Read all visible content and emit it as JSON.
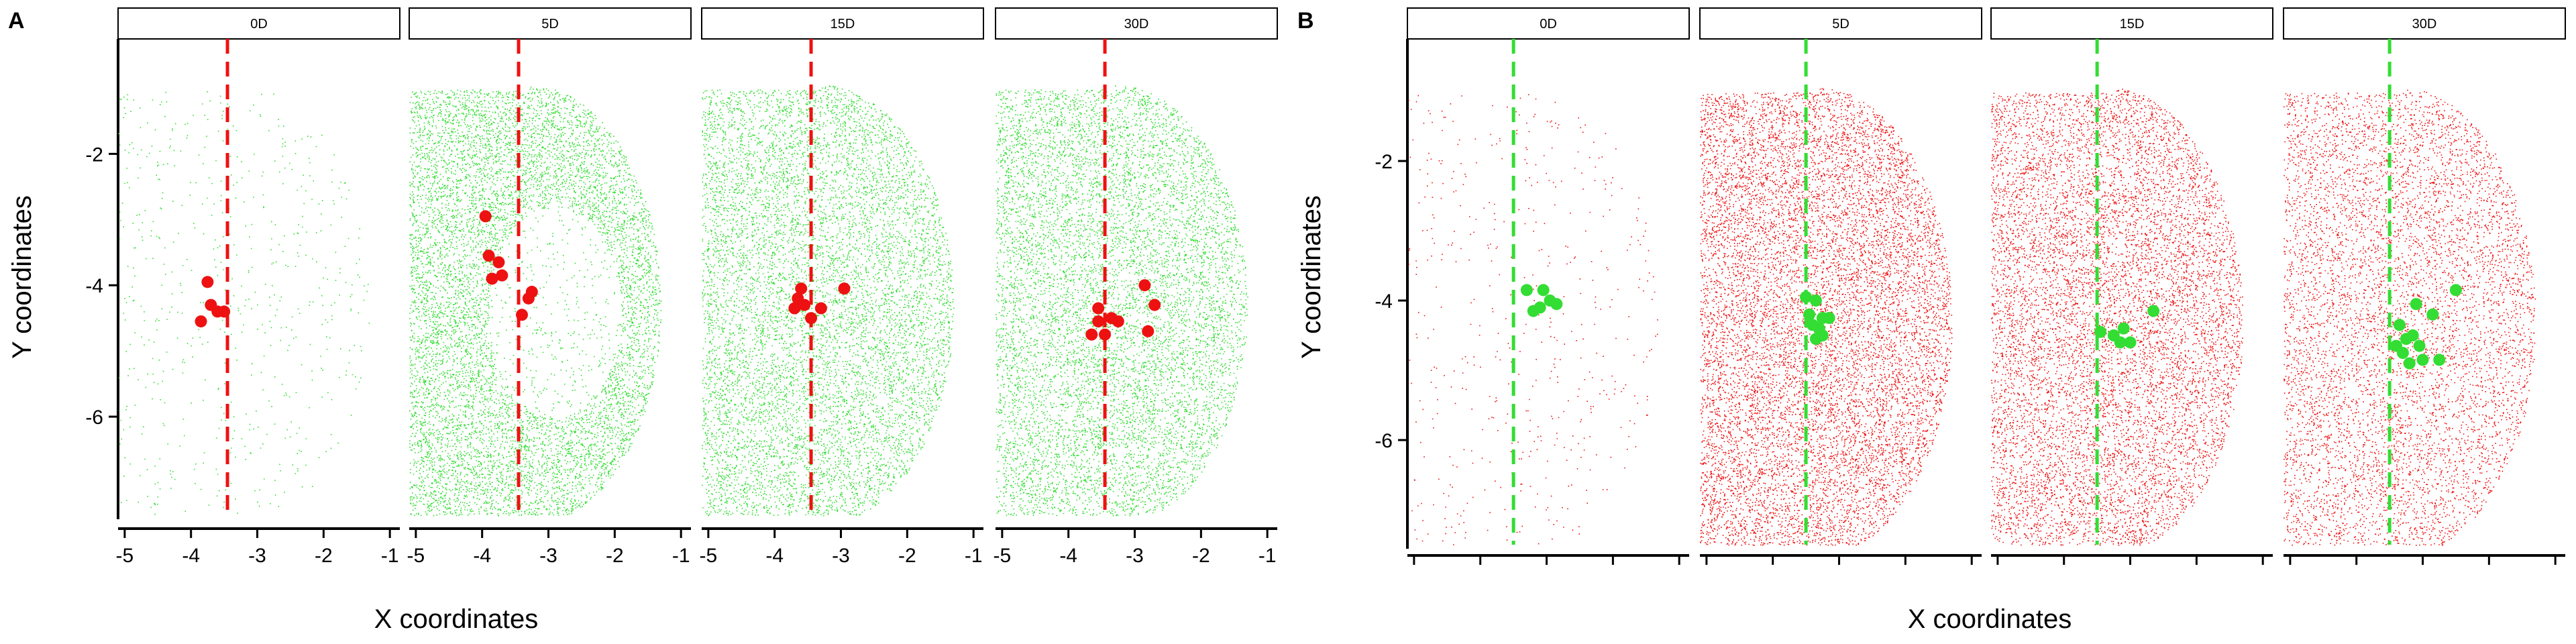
{
  "figure": {
    "panel_labels": [
      "A",
      "B"
    ]
  },
  "chart_data": [
    {
      "type": "scatter",
      "panel": "A",
      "xlabel": "X coordinates",
      "ylabel": "Y coordinates",
      "facets": [
        "0D",
        "5D",
        "15D",
        "30D"
      ],
      "xlim": [
        -5.1,
        -0.85
      ],
      "ylim": [
        -7.5,
        -0.25
      ],
      "xticks": [
        -5,
        -4,
        -3,
        -2,
        -1
      ],
      "yticks": [
        -2,
        -4,
        -6
      ],
      "background_color": "#33dd33",
      "highlight_color": "#ee1111",
      "reference_line_color": "#ee1111",
      "reference_line_x": [
        -3.45,
        -3.45,
        -3.45,
        -3.45
      ],
      "background_density": [
        600,
        9000,
        9000,
        9000
      ],
      "highlight_points": [
        [
          [
            -3.75,
            -3.95
          ],
          [
            -3.7,
            -4.3
          ],
          [
            -3.6,
            -4.4
          ],
          [
            -3.5,
            -4.4
          ],
          [
            -3.85,
            -4.55
          ]
        ],
        [
          [
            -3.95,
            -2.95
          ],
          [
            -3.9,
            -3.55
          ],
          [
            -3.75,
            -3.65
          ],
          [
            -3.7,
            -3.85
          ],
          [
            -3.85,
            -3.9
          ],
          [
            -3.25,
            -4.1
          ],
          [
            -3.3,
            -4.2
          ],
          [
            -3.4,
            -4.45
          ]
        ],
        [
          [
            -3.6,
            -4.05
          ],
          [
            -3.65,
            -4.2
          ],
          [
            -3.55,
            -4.3
          ],
          [
            -3.7,
            -4.35
          ],
          [
            -3.3,
            -4.35
          ],
          [
            -3.45,
            -4.5
          ],
          [
            -2.95,
            -4.05
          ]
        ],
        [
          [
            -3.55,
            -4.35
          ],
          [
            -3.35,
            -4.5
          ],
          [
            -3.55,
            -4.55
          ],
          [
            -3.25,
            -4.55
          ],
          [
            -2.85,
            -4.0
          ],
          [
            -2.7,
            -4.3
          ],
          [
            -3.65,
            -4.75
          ],
          [
            -3.45,
            -4.75
          ],
          [
            -2.8,
            -4.7
          ]
        ]
      ]
    },
    {
      "type": "scatter",
      "panel": "B",
      "xlabel": "X coordinates",
      "ylabel": "Y coordinates",
      "facets": [
        "0D",
        "5D",
        "15D",
        "30D"
      ],
      "xlim": [
        -5.1,
        -0.85
      ],
      "ylim": [
        -7.5,
        -0.25
      ],
      "xticks": [
        -5,
        -4,
        -3,
        -2,
        -1
      ],
      "xtick_labels_shown": false,
      "yticks": [
        -2,
        -4,
        -6
      ],
      "background_color": "#ee1111",
      "highlight_color": "#33dd33",
      "reference_line_color": "#33dd33",
      "reference_line_x": [
        -3.5,
        -3.5,
        -3.5,
        -3.5
      ],
      "background_density": [
        500,
        11000,
        9500,
        7000
      ],
      "highlight_points": [
        [
          [
            -3.3,
            -3.85
          ],
          [
            -3.05,
            -3.85
          ],
          [
            -2.95,
            -4.0
          ],
          [
            -3.1,
            -4.1
          ],
          [
            -2.85,
            -4.05
          ],
          [
            -3.2,
            -4.15
          ]
        ],
        [
          [
            -3.5,
            -3.95
          ],
          [
            -3.35,
            -4.0
          ],
          [
            -3.45,
            -4.2
          ],
          [
            -3.25,
            -4.25
          ],
          [
            -3.15,
            -4.25
          ],
          [
            -3.3,
            -4.4
          ],
          [
            -3.35,
            -4.55
          ],
          [
            -3.25,
            -4.5
          ],
          [
            -3.4,
            -4.35
          ]
        ],
        [
          [
            -3.1,
            -4.4
          ],
          [
            -3.15,
            -4.6
          ],
          [
            -3.0,
            -4.6
          ],
          [
            -3.25,
            -4.5
          ],
          [
            -3.45,
            -4.45
          ],
          [
            -2.65,
            -4.15
          ]
        ],
        [
          [
            -3.35,
            -4.35
          ],
          [
            -3.1,
            -4.05
          ],
          [
            -2.85,
            -4.2
          ],
          [
            -2.5,
            -3.85
          ],
          [
            -3.15,
            -4.5
          ],
          [
            -3.25,
            -4.55
          ],
          [
            -3.05,
            -4.65
          ],
          [
            -3.3,
            -4.75
          ],
          [
            -3.4,
            -4.65
          ],
          [
            -3.0,
            -4.85
          ],
          [
            -2.75,
            -4.85
          ],
          [
            -3.2,
            -4.9
          ]
        ]
      ]
    }
  ]
}
